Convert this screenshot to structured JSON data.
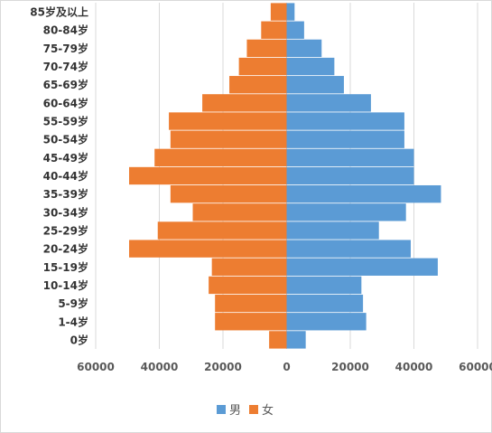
{
  "chart_data": {
    "type": "bar",
    "orientation": "horizontal",
    "subtype": "population-pyramid",
    "categories": [
      "0岁",
      "1-4岁",
      "5-9岁",
      "10-14岁",
      "15-19岁",
      "20-24岁",
      "25-29岁",
      "30-34岁",
      "35-39岁",
      "40-44岁",
      "45-49岁",
      "50-54岁",
      "55-59岁",
      "60-64岁",
      "65-69岁",
      "70-74岁",
      "75-79岁",
      "80-84岁",
      "85岁及以上"
    ],
    "series": [
      {
        "name": "男",
        "color": "#5b9bd5",
        "values": [
          6000,
          25000,
          24000,
          23500,
          47500,
          39000,
          29000,
          37500,
          48500,
          40000,
          40000,
          37000,
          37000,
          26500,
          18000,
          15000,
          11000,
          5500,
          2500
        ]
      },
      {
        "name": "女",
        "color": "#ed7d31",
        "values": [
          5500,
          22500,
          22500,
          24500,
          23500,
          49500,
          40500,
          29500,
          36500,
          49500,
          41500,
          36500,
          37000,
          26500,
          18000,
          15000,
          12500,
          8000,
          5000
        ]
      }
    ],
    "xlim": [
      -60000,
      60000
    ],
    "xticks": [
      -60000,
      -40000,
      -20000,
      0,
      20000,
      40000,
      60000
    ],
    "xtick_labels": [
      "60000",
      "40000",
      "20000",
      "0",
      "20000",
      "40000",
      "60000"
    ],
    "grid": "vertical",
    "legend": "bottom-center",
    "title": "",
    "xlabel": "",
    "ylabel": ""
  }
}
